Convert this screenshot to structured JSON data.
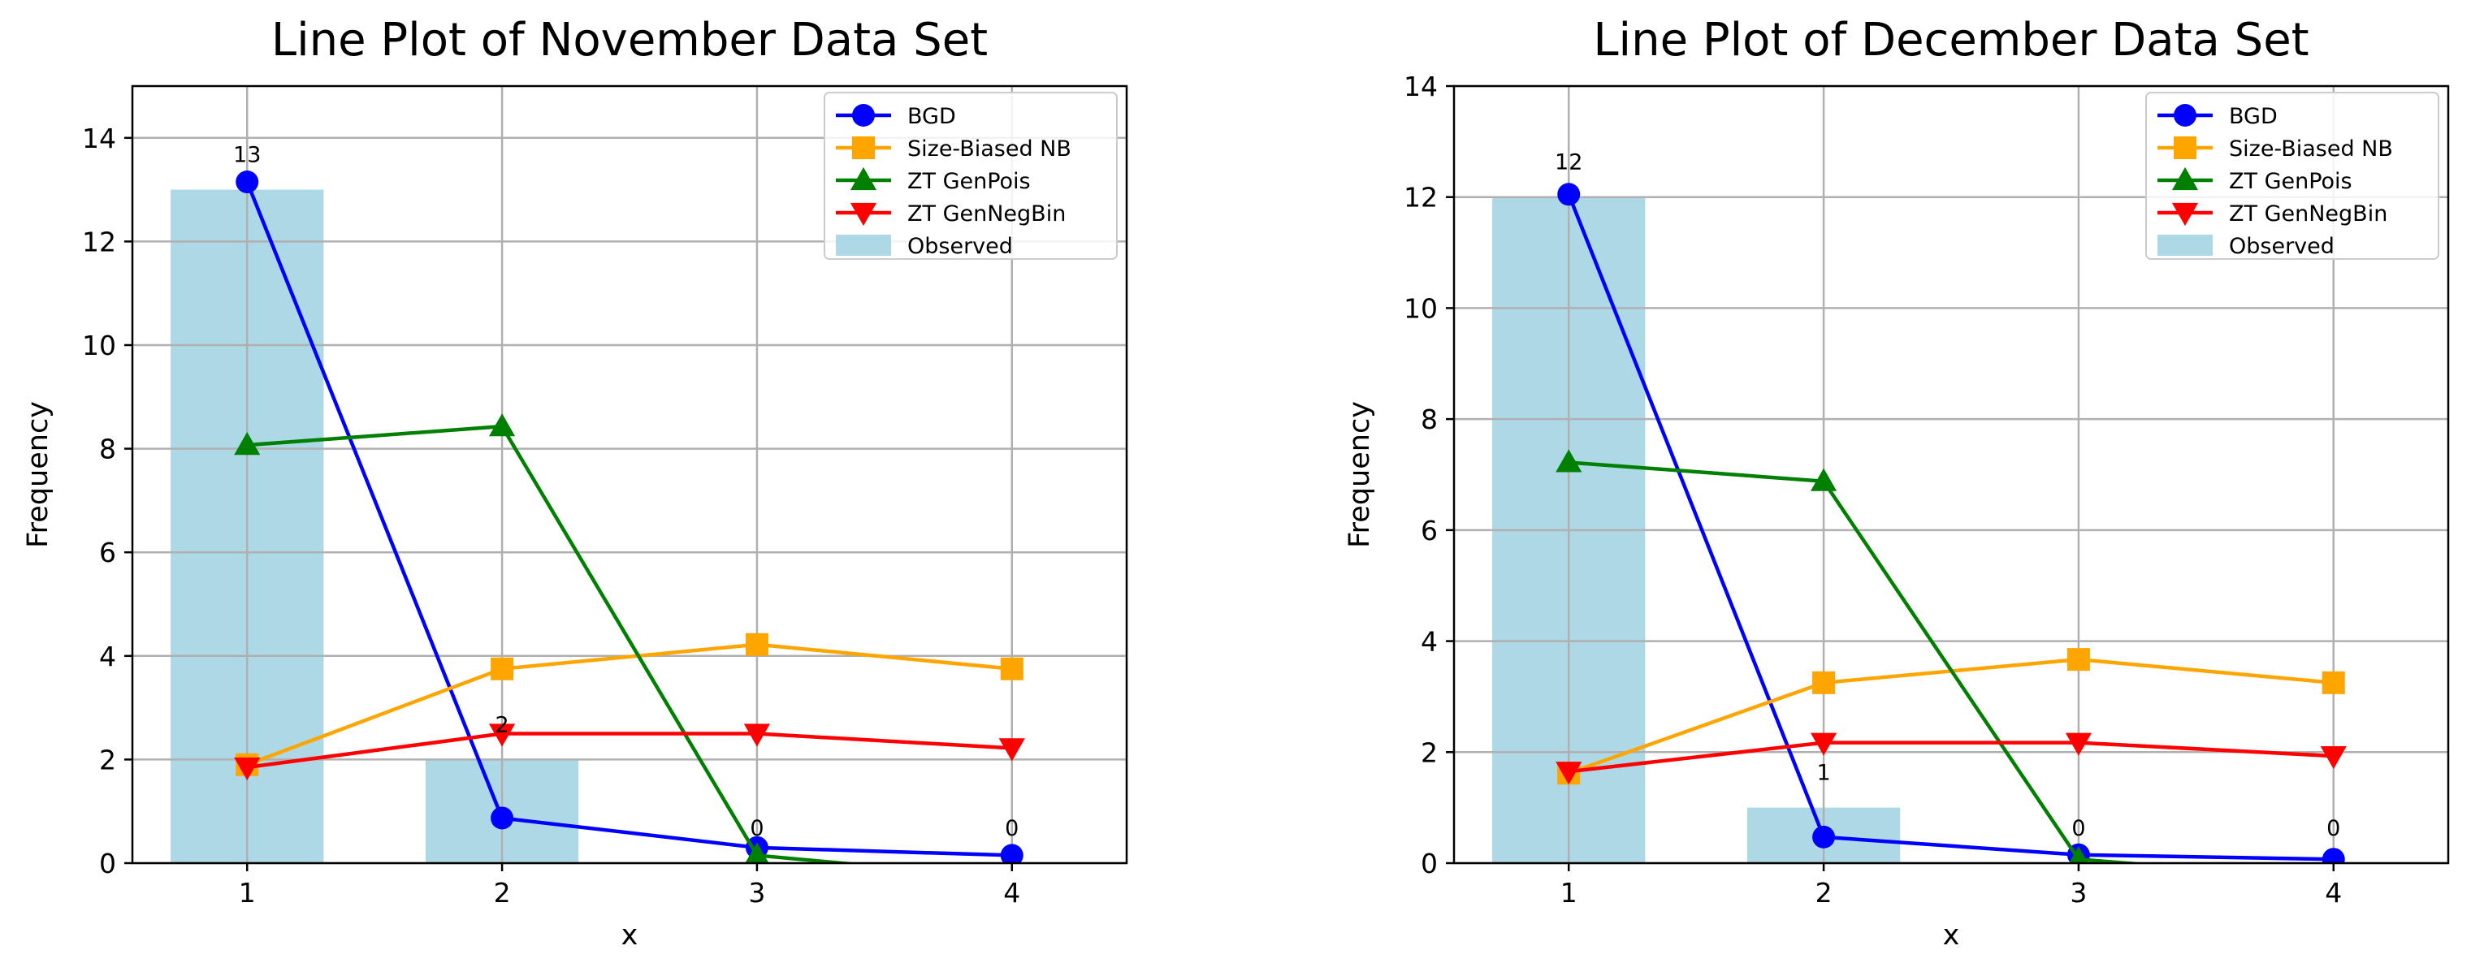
{
  "chart_data": [
    {
      "type": "line",
      "title": "Line Plot of November Data Set",
      "xlabel": "x",
      "ylabel": "Frequency",
      "x": [
        1,
        2,
        3,
        4
      ],
      "xlim": [
        0.55,
        4.45
      ],
      "ylim": [
        0,
        15
      ],
      "yticks": [
        0,
        2,
        4,
        6,
        8,
        10,
        12,
        14
      ],
      "grid": true,
      "legend_position": "top-right",
      "bars": {
        "name": "Observed",
        "values": [
          13,
          2,
          0,
          0
        ],
        "labels": [
          "13",
          "2",
          "0",
          "0"
        ],
        "color": "#add8e6"
      },
      "series": [
        {
          "name": "BGD",
          "values": [
            13.15,
            0.87,
            0.3,
            0.15
          ],
          "color": "#0000ff",
          "marker": "circle"
        },
        {
          "name": "Size-Biased NB",
          "values": [
            1.9,
            3.75,
            4.22,
            3.75
          ],
          "color": "#ffa500",
          "marker": "square"
        },
        {
          "name": "ZT GenPois",
          "values": [
            8.07,
            8.43,
            0.15,
            -0.3
          ],
          "color": "#008000",
          "marker": "triangle-up"
        },
        {
          "name": "ZT GenNegBin",
          "values": [
            1.85,
            2.5,
            2.5,
            2.22
          ],
          "color": "#ff0000",
          "marker": "triangle-down"
        }
      ]
    },
    {
      "type": "line",
      "title": "Line Plot of December Data Set",
      "xlabel": "x",
      "ylabel": "Frequency",
      "x": [
        1,
        2,
        3,
        4
      ],
      "xlim": [
        0.55,
        4.45
      ],
      "ylim": [
        0,
        14
      ],
      "yticks": [
        0,
        2,
        4,
        6,
        8,
        10,
        12,
        14
      ],
      "grid": true,
      "legend_position": "top-right",
      "bars": {
        "name": "Observed",
        "values": [
          12,
          1,
          0,
          0
        ],
        "labels": [
          "12",
          "1",
          "0",
          "0"
        ],
        "color": "#add8e6"
      },
      "series": [
        {
          "name": "BGD",
          "values": [
            12.05,
            0.47,
            0.15,
            0.07
          ],
          "color": "#0000ff",
          "marker": "circle"
        },
        {
          "name": "Size-Biased NB",
          "values": [
            1.62,
            3.25,
            3.67,
            3.25
          ],
          "color": "#ffa500",
          "marker": "square"
        },
        {
          "name": "ZT GenPois",
          "values": [
            7.22,
            6.88,
            0.07,
            -0.3
          ],
          "color": "#008000",
          "marker": "triangle-up"
        },
        {
          "name": "ZT GenNegBin",
          "values": [
            1.65,
            2.17,
            2.17,
            1.93
          ],
          "color": "#ff0000",
          "marker": "triangle-down"
        }
      ]
    }
  ]
}
